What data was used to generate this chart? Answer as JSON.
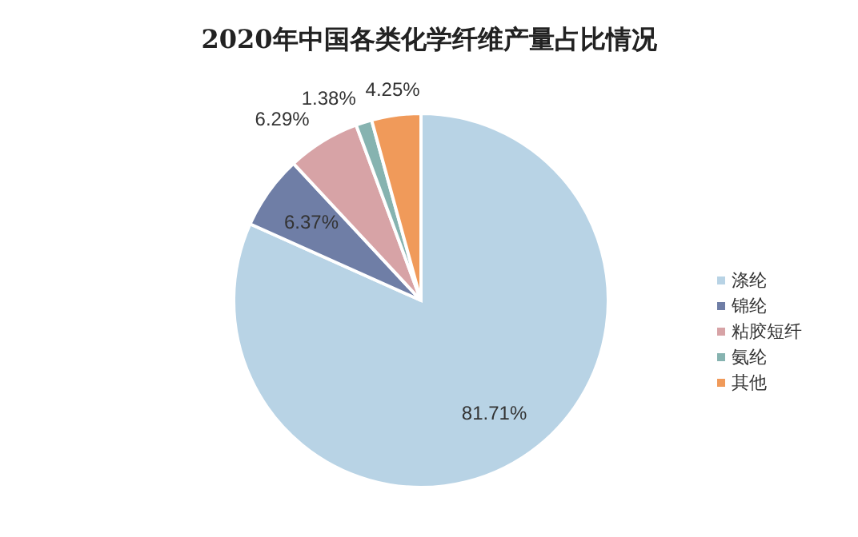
{
  "chart_data": {
    "type": "pie",
    "title": "2020年中国各类化学纤维产量占比情况",
    "categories": [
      "涤纶",
      "锦纶",
      "粘胶短纤",
      "氨纶",
      "其他"
    ],
    "values": [
      81.71,
      6.37,
      6.29,
      1.38,
      4.25
    ],
    "colors": [
      "#b8d3e5",
      "#6f7ea6",
      "#d7a3a6",
      "#86b3b0",
      "#f09a5a"
    ],
    "value_labels": [
      "81.71%",
      "6.37%",
      "6.29%",
      "1.38%",
      "4.25%"
    ],
    "legend": "right"
  }
}
